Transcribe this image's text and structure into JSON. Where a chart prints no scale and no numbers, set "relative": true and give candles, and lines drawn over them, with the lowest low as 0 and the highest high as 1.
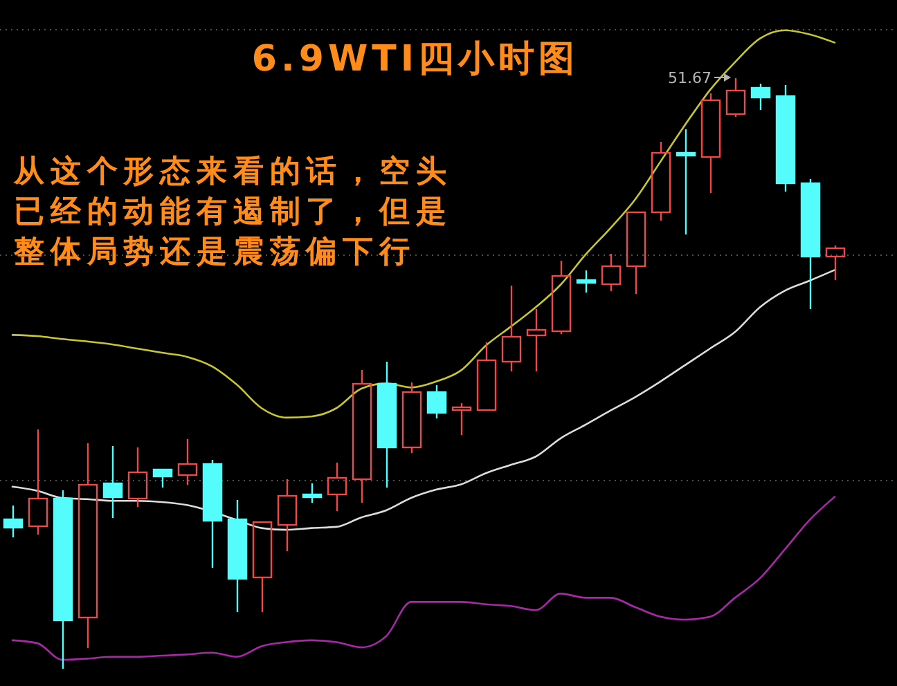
{
  "chart_data": {
    "type": "candlestick",
    "title": "6.9WTI四小时图",
    "relative": true,
    "tick_labels": false,
    "categories": [
      null,
      null,
      null,
      null,
      null,
      null,
      null,
      null,
      null,
      null,
      null,
      null,
      null,
      null,
      null,
      null,
      null,
      null,
      null,
      null,
      null,
      null,
      null,
      null,
      null,
      null,
      null,
      null,
      null,
      null,
      null,
      null,
      null,
      null
    ],
    "ohlc": [
      [
        0.253,
        0.276,
        0.222,
        0.239
      ],
      [
        0.241,
        0.405,
        0.227,
        0.288
      ],
      [
        0.288,
        0.302,
        0,
        0.082
      ],
      [
        0.087,
        0.382,
        0.035,
        0.311
      ],
      [
        0.314,
        0.377,
        0.255,
        0.29
      ],
      [
        0.288,
        0.375,
        0.274,
        0.333
      ],
      [
        0.337,
        0.337,
        0.307,
        0.326
      ],
      [
        0.328,
        0.389,
        0.311,
        0.347
      ],
      [
        0.347,
        0.354,
        0.171,
        0.251
      ],
      [
        0.253,
        0.286,
        0.096,
        0.152
      ],
      [
        0.155,
        0.248,
        0.096,
        0.248
      ],
      [
        0.244,
        0.321,
        0.199,
        0.293
      ],
      [
        0.295,
        0.314,
        0.281,
        0.29
      ],
      [
        0.295,
        0.349,
        0.267,
        0.323
      ],
      [
        0.321,
        0.506,
        0.281,
        0.482
      ],
      [
        0.482,
        0.52,
        0.307,
        0.375
      ],
      [
        0.375,
        0.485,
        0.365,
        0.468
      ],
      [
        0.468,
        0.48,
        0.424,
        0.433
      ],
      [
        0.438,
        0.45,
        0.396,
        0.443
      ],
      [
        0.438,
        0.553,
        0.438,
        0.522
      ],
      [
        0.52,
        0.649,
        0.504,
        0.562
      ],
      [
        0.564,
        0.609,
        0.504,
        0.574
      ],
      [
        0.571,
        0.691,
        0.567,
        0.665
      ],
      [
        0.658,
        0.674,
        0.637,
        0.653
      ],
      [
        0.651,
        0.703,
        0.639,
        0.681
      ],
      [
        0.681,
        0.773,
        0.635,
        0.773
      ],
      [
        0.773,
        0.892,
        0.759,
        0.874
      ],
      [
        0.874,
        0.913,
        0.735,
        0.869
      ],
      [
        0.867,
        0.974,
        0.806,
        0.963
      ],
      [
        0.939,
        1,
        0.934,
        0.979
      ],
      [
        0.984,
        0.991,
        0.946,
        0.967
      ],
      [
        0.97,
        0.988,
        0.808,
        0.822
      ],
      [
        0.822,
        0.829,
        0.609,
        0.698
      ],
      [
        0.698,
        0.717,
        0.658,
        0.712
      ]
    ],
    "colors": [
      "#54fcfc",
      "#f04848",
      "#54fcfc",
      "#f04848",
      "#54fcfc",
      "#f04848",
      "#54fcfc",
      "#f04848",
      "#54fcfc",
      "#54fcfc",
      "#f04848",
      "#f04848",
      "#54fcfc",
      "#f04848",
      "#f04848",
      "#54fcfc",
      "#f04848",
      "#54fcfc",
      "#f04848",
      "#f04848",
      "#f04848",
      "#f04848",
      "#f04848",
      "#54fcfc",
      "#f04848",
      "#f04848",
      "#f04848",
      "#54fcfc",
      "#f04848",
      "#f04848",
      "#54fcfc",
      "#54fcfc",
      "#54fcfc",
      "#f04848"
    ],
    "series": [
      {
        "type": "line",
        "color": "#c8c828",
        "values": [
          0.564,
          0.562,
          0.557,
          0.553,
          0.548,
          0.541,
          0.534,
          0.527,
          0.511,
          0.48,
          0.44,
          0.424,
          0.426,
          0.44,
          0.473,
          0.482,
          0.475,
          0.485,
          0.504,
          0.546,
          0.578,
          0.611,
          0.649,
          0.7,
          0.745,
          0.794,
          0.857,
          0.92,
          0.979,
          1.026,
          1.066,
          1.08,
          1.073,
          1.059
        ]
      },
      {
        "type": "line",
        "color": "#dcdcdc",
        "values": [
          0.307,
          0.3,
          0.288,
          0.286,
          0.283,
          0.283,
          0.281,
          0.276,
          null,
          0.251,
          0.237,
          0.234,
          0.237,
          0.239,
          0.255,
          0.267,
          0.288,
          0.302,
          0.311,
          0.33,
          0.344,
          0.358,
          0.389,
          0.412,
          0.436,
          0.459,
          0.485,
          0.513,
          0.541,
          0.569,
          0.611,
          0.639,
          0.656,
          0.674
        ]
      },
      {
        "type": "line",
        "color": "#a828a8",
        "values": [
          0.047,
          0.042,
          0.014,
          0.016,
          0.019,
          0.019,
          0.021,
          0.023,
          0.026,
          0.019,
          0.037,
          0.044,
          0.047,
          0.044,
          0.035,
          0.054,
          0.112,
          0.112,
          0.112,
          0.108,
          0.105,
          0.098,
          0.126,
          0.119,
          0.119,
          0.103,
          0.087,
          0.082,
          0.087,
          0.119,
          0.152,
          0.201,
          0.251,
          0.29
        ]
      }
    ],
    "ref_lines": [
      {
        "axis": "y",
        "value": 1.082,
        "color": "#505050",
        "line_style": "dotted"
      },
      {
        "axis": "y",
        "value": 0.7,
        "color": "#505050",
        "line_style": "dotted"
      },
      {
        "axis": "y",
        "value": 0.319,
        "color": "#505050",
        "line_style": "dotted"
      }
    ],
    "annotations": [
      "51.67",
      "从这个形态来看的话，空头已经的动能有遏制了，但是整体局势还是震荡偏下行"
    ]
  }
}
